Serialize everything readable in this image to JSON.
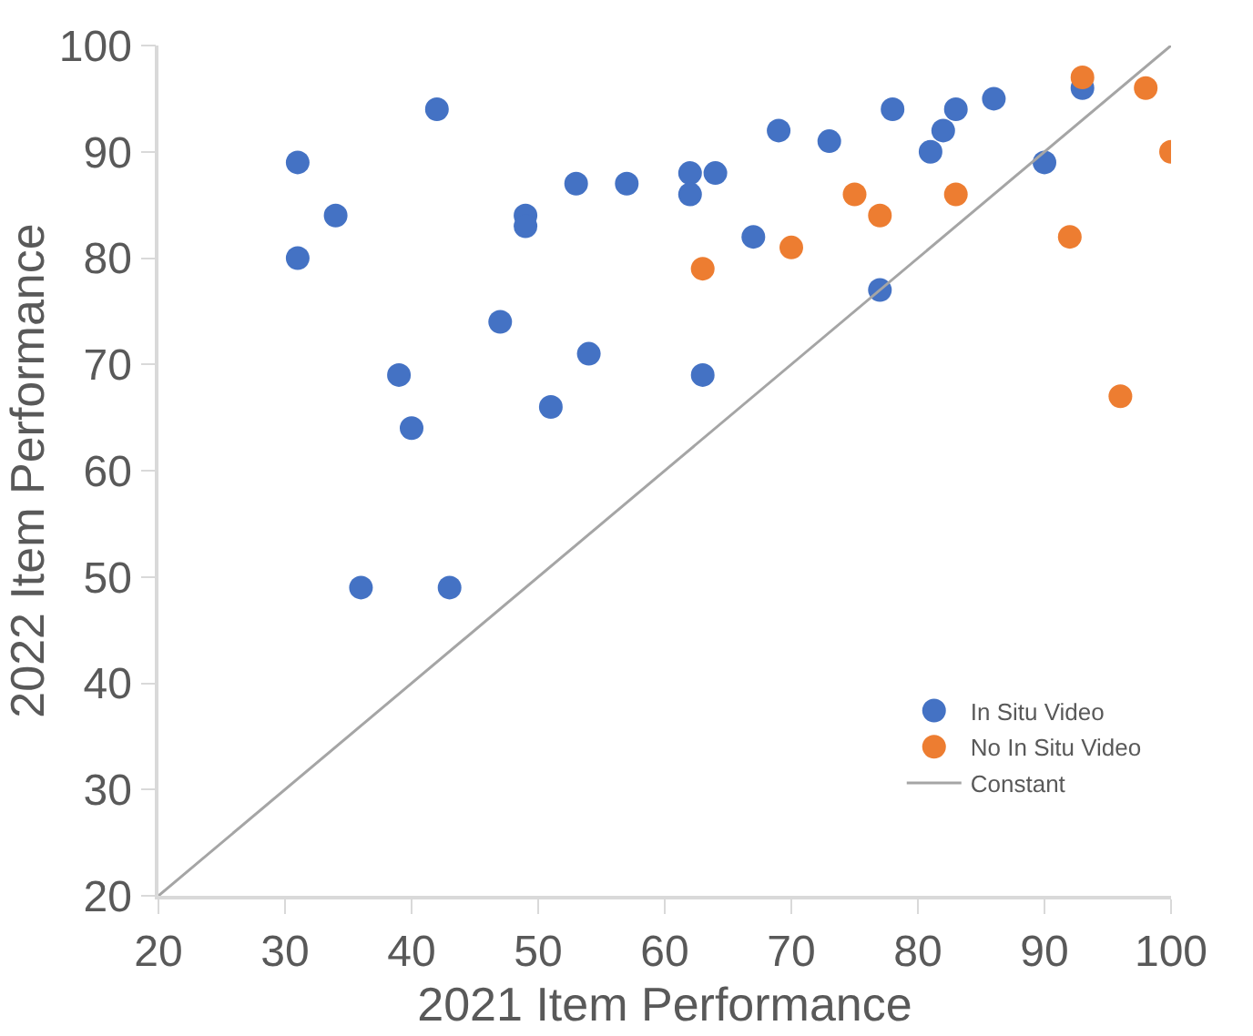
{
  "chart_data": {
    "type": "scatter",
    "xlabel": "2021 Item Performance",
    "ylabel": "2022 Item Performance",
    "xlim": [
      20,
      100
    ],
    "ylim": [
      20,
      100
    ],
    "xticks": [
      20,
      30,
      40,
      50,
      60,
      70,
      80,
      90,
      100
    ],
    "yticks": [
      20,
      30,
      40,
      50,
      60,
      70,
      80,
      90,
      100
    ],
    "grid": false,
    "legend": "bottom right",
    "marker": "circle",
    "series": [
      {
        "name": "In Situ Video",
        "color": "#4472c4",
        "x": [
          31,
          31,
          34,
          42,
          39,
          40,
          36,
          43,
          47,
          49,
          49,
          51,
          53,
          54,
          57,
          62,
          62,
          63,
          64,
          67,
          69,
          73,
          77,
          78,
          81,
          82,
          83,
          86,
          90,
          93
        ],
        "values": [
          89,
          80,
          84,
          94,
          69,
          64,
          49,
          49,
          74,
          84,
          83,
          66,
          87,
          71,
          87,
          88,
          86,
          69,
          88,
          82,
          92,
          91,
          77,
          94,
          90,
          92,
          94,
          95,
          89,
          96
        ]
      },
      {
        "name": "No In Situ Video",
        "color": "#ed7d31",
        "x": [
          63,
          70,
          75,
          77,
          83,
          92,
          93,
          96,
          98,
          100
        ],
        "values": [
          79,
          81,
          86,
          84,
          86,
          82,
          97,
          67,
          96,
          90
        ]
      },
      {
        "name": "Constant",
        "type": "line",
        "color": "#a5a5a5",
        "x": [
          20,
          100
        ],
        "values": [
          20,
          100
        ],
        "marker": "none",
        "line_style": "solid"
      }
    ]
  }
}
